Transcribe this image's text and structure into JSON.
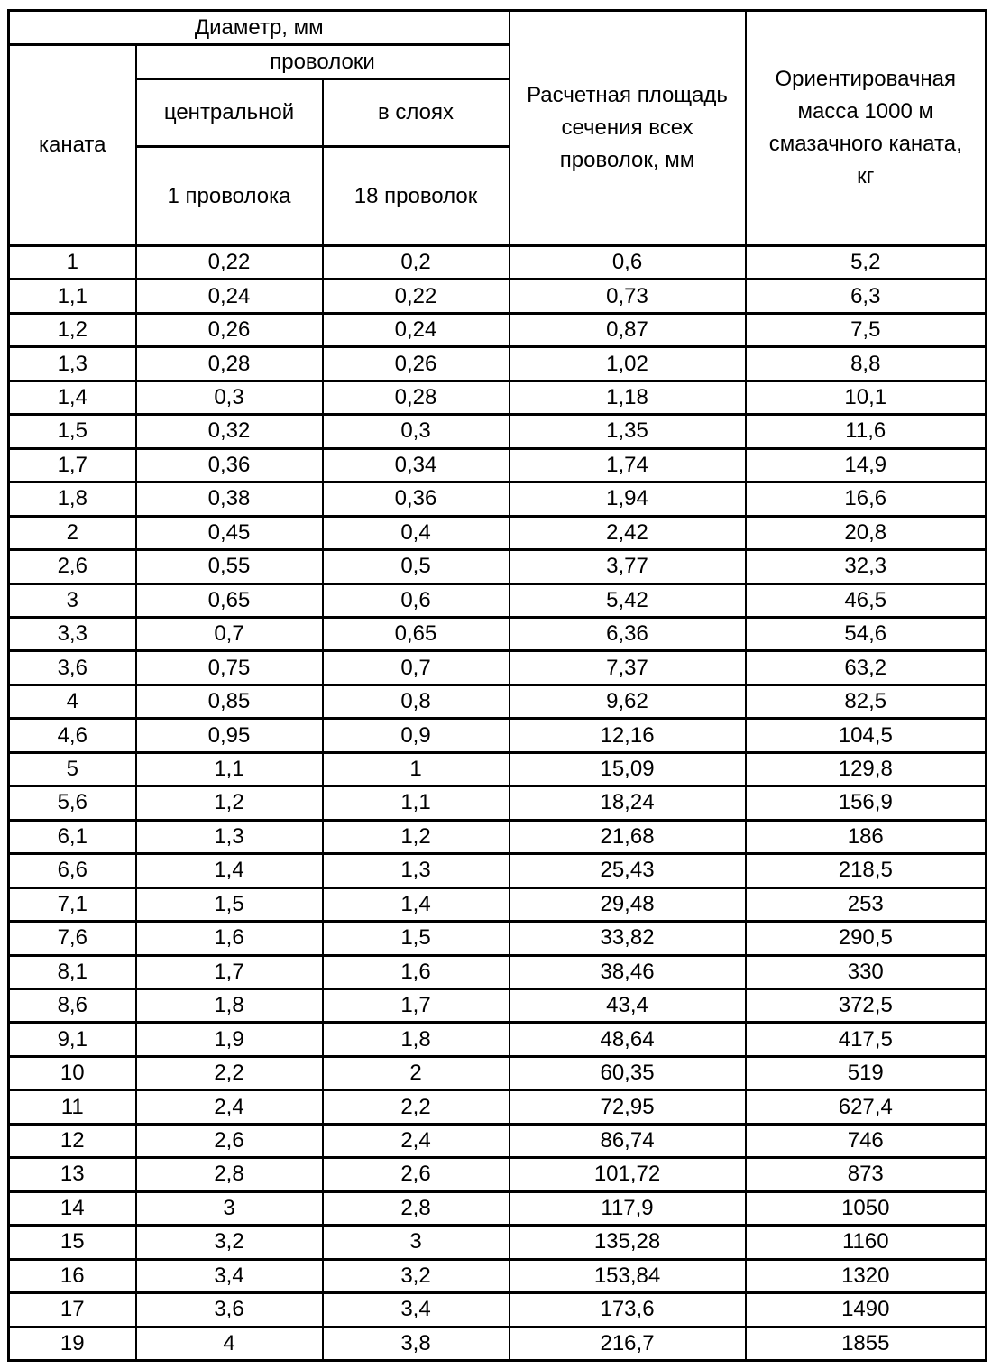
{
  "table": {
    "header": {
      "diameter_group": "Диаметр, мм",
      "rope": "каната",
      "wire_group": "проволоки",
      "wire_central": "центральной",
      "wire_layers": "в слоях",
      "wire_central_sub": "1 проволока",
      "wire_layers_sub": "18 проволок",
      "section_area": "Расчетная площадь\nсечения всех\nпроволок, мм",
      "mass": "Ориентировачная\nмасса 1000 м\nсмазачного каната,\nкг"
    },
    "rows": [
      [
        "1",
        "0,22",
        "0,2",
        "0,6",
        "5,2"
      ],
      [
        "1,1",
        "0,24",
        "0,22",
        "0,73",
        "6,3"
      ],
      [
        "1,2",
        "0,26",
        "0,24",
        "0,87",
        "7,5"
      ],
      [
        "1,3",
        "0,28",
        "0,26",
        "1,02",
        "8,8"
      ],
      [
        "1,4",
        "0,3",
        "0,28",
        "1,18",
        "10,1"
      ],
      [
        "1,5",
        "0,32",
        "0,3",
        "1,35",
        "11,6"
      ],
      [
        "1,7",
        "0,36",
        "0,34",
        "1,74",
        "14,9"
      ],
      [
        "1,8",
        "0,38",
        "0,36",
        "1,94",
        "16,6"
      ],
      [
        "2",
        "0,45",
        "0,4",
        "2,42",
        "20,8"
      ],
      [
        "2,6",
        "0,55",
        "0,5",
        "3,77",
        "32,3"
      ],
      [
        "3",
        "0,65",
        "0,6",
        "5,42",
        "46,5"
      ],
      [
        "3,3",
        "0,7",
        "0,65",
        "6,36",
        "54,6"
      ],
      [
        "3,6",
        "0,75",
        "0,7",
        "7,37",
        "63,2"
      ],
      [
        "4",
        "0,85",
        "0,8",
        "9,62",
        "82,5"
      ],
      [
        "4,6",
        "0,95",
        "0,9",
        "12,16",
        "104,5"
      ],
      [
        "5",
        "1,1",
        "1",
        "15,09",
        "129,8"
      ],
      [
        "5,6",
        "1,2",
        "1,1",
        "18,24",
        "156,9"
      ],
      [
        "6,1",
        "1,3",
        "1,2",
        "21,68",
        "186"
      ],
      [
        "6,6",
        "1,4",
        "1,3",
        "25,43",
        "218,5"
      ],
      [
        "7,1",
        "1,5",
        "1,4",
        "29,48",
        "253"
      ],
      [
        "7,6",
        "1,6",
        "1,5",
        "33,82",
        "290,5"
      ],
      [
        "8,1",
        "1,7",
        "1,6",
        "38,46",
        "330"
      ],
      [
        "8,6",
        "1,8",
        "1,7",
        "43,4",
        "372,5"
      ],
      [
        "9,1",
        "1,9",
        "1,8",
        "48,64",
        "417,5"
      ],
      [
        "10",
        "2,2",
        "2",
        "60,35",
        "519"
      ],
      [
        "11",
        "2,4",
        "2,2",
        "72,95",
        "627,4"
      ],
      [
        "12",
        "2,6",
        "2,4",
        "86,74",
        "746"
      ],
      [
        "13",
        "2,8",
        "2,6",
        "101,72",
        "873"
      ],
      [
        "14",
        "3",
        "2,8",
        "117,9",
        "1050"
      ],
      [
        "15",
        "3,2",
        "3",
        "135,28",
        "1160"
      ],
      [
        "16",
        "3,4",
        "3,2",
        "153,84",
        "1320"
      ],
      [
        "17",
        "3,6",
        "3,4",
        "173,6",
        "1490"
      ],
      [
        "19",
        "4",
        "3,8",
        "216,7",
        "1855"
      ]
    ]
  }
}
